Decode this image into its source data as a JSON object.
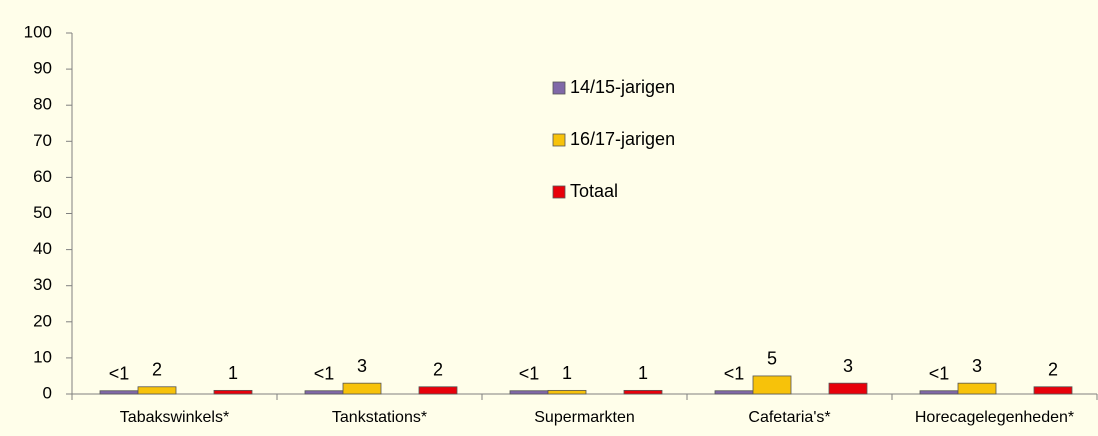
{
  "chart_data": {
    "type": "bar",
    "categories": [
      "Tabakswinkels*",
      "Tankstations*",
      "Supermarkten",
      "Cafetaria's*",
      "Horecagelegenheden*"
    ],
    "series": [
      {
        "name": "14/15-jarigen",
        "color": "#8068a8",
        "values": [
          0.9,
          0.9,
          0.9,
          0.9,
          0.9
        ],
        "value_labels": [
          "<1",
          "<1",
          "<1",
          "<1",
          "<1"
        ]
      },
      {
        "name": "16/17-jarigen",
        "color": "#f7c20a",
        "values": [
          2,
          3,
          1,
          5,
          3
        ]
      },
      {
        "name": "Totaal",
        "color": "#e8000a",
        "values": [
          1,
          2,
          1,
          3,
          2
        ]
      }
    ],
    "ylim": [
      0,
      100
    ],
    "yticks": [
      0,
      10,
      20,
      30,
      40,
      50,
      60,
      70,
      80,
      90,
      100
    ],
    "grid": false,
    "legend": "top-center"
  }
}
